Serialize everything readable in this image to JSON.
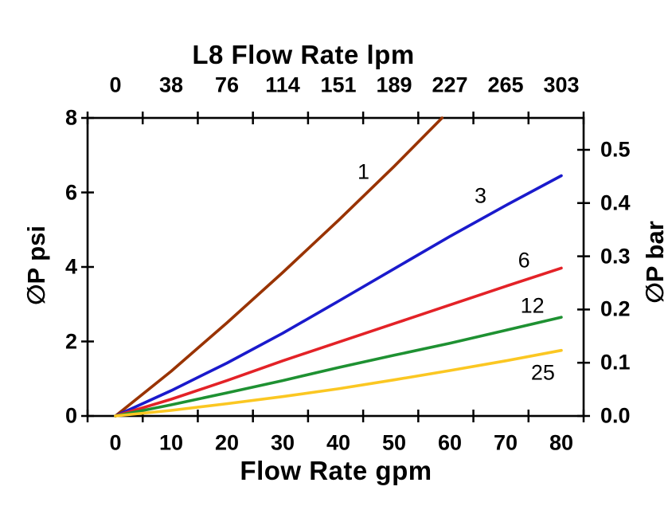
{
  "window": {
    "background": "#ffffff"
  },
  "chart_data": {
    "type": "line",
    "grid": false,
    "legend": "inline-labels-on-lines",
    "axis_color": "#000000",
    "text_color": "#000000",
    "top_axis": {
      "title": "L8 Flow Rate lpm",
      "tick_labels": [
        "0",
        "38",
        "76",
        "114",
        "151",
        "189",
        "227",
        "265",
        "303"
      ],
      "tick_values_gpm": [
        0,
        10,
        20,
        30,
        40,
        50,
        60,
        70,
        80
      ]
    },
    "x_axis": {
      "title": "Flow Rate gpm",
      "tick_labels": [
        "0",
        "10",
        "20",
        "30",
        "40",
        "50",
        "60",
        "70",
        "80"
      ],
      "tick_values_gpm": [
        0,
        10,
        20,
        30,
        40,
        50,
        60,
        70,
        80
      ],
      "range_gpm": [
        -5,
        85
      ]
    },
    "y_axis_left": {
      "title": "∅P psi",
      "tick_labels": [
        "8",
        "6",
        "4",
        "2",
        "0"
      ],
      "tick_values_psi": [
        8,
        6,
        4,
        2,
        0
      ],
      "range_psi": [
        0,
        8
      ]
    },
    "y_axis_right": {
      "title": "∅P bar",
      "tick_labels": [
        "0.5",
        "0.4",
        "0.3",
        "0.2",
        "0.1",
        "0.0"
      ],
      "tick_values_bar": [
        0.5,
        0.4,
        0.3,
        0.2,
        0.1,
        0.0
      ],
      "range_bar": [
        0,
        0.56
      ]
    },
    "series": [
      {
        "label": "1",
        "micron_rating": 1,
        "color": "#993300",
        "points": [
          [
            0,
            0
          ],
          [
            10,
            1.2
          ],
          [
            20,
            2.5
          ],
          [
            30,
            3.85
          ],
          [
            40,
            5.25
          ],
          [
            50,
            6.7
          ],
          [
            58.6,
            8.0
          ]
        ],
        "label_pos": [
          44.5,
          6.55
        ]
      },
      {
        "label": "3",
        "micron_rating": 3,
        "color": "#1A1ACC",
        "points": [
          [
            0,
            0
          ],
          [
            10,
            0.68
          ],
          [
            20,
            1.42
          ],
          [
            30,
            2.22
          ],
          [
            40,
            3.08
          ],
          [
            50,
            3.95
          ],
          [
            60,
            4.82
          ],
          [
            70,
            5.65
          ],
          [
            80,
            6.45
          ]
        ],
        "label_pos": [
          65.5,
          5.9
        ]
      },
      {
        "label": "6",
        "micron_rating": 6,
        "color": "#E32227",
        "points": [
          [
            0,
            0
          ],
          [
            10,
            0.45
          ],
          [
            20,
            0.95
          ],
          [
            30,
            1.48
          ],
          [
            40,
            1.98
          ],
          [
            50,
            2.48
          ],
          [
            60,
            2.98
          ],
          [
            70,
            3.48
          ],
          [
            80,
            3.97
          ]
        ],
        "label_pos": [
          73.3,
          4.18
        ]
      },
      {
        "label": "12",
        "micron_rating": 12,
        "color": "#1E9132",
        "points": [
          [
            0,
            0
          ],
          [
            10,
            0.3
          ],
          [
            20,
            0.62
          ],
          [
            30,
            0.95
          ],
          [
            40,
            1.3
          ],
          [
            50,
            1.63
          ],
          [
            60,
            1.95
          ],
          [
            70,
            2.3
          ],
          [
            80,
            2.65
          ]
        ],
        "label_pos": [
          74.8,
          2.95
        ]
      },
      {
        "label": "25",
        "micron_rating": 25,
        "color": "#FBC722",
        "points": [
          [
            0,
            0
          ],
          [
            10,
            0.15
          ],
          [
            20,
            0.33
          ],
          [
            30,
            0.52
          ],
          [
            40,
            0.73
          ],
          [
            50,
            0.97
          ],
          [
            60,
            1.22
          ],
          [
            70,
            1.48
          ],
          [
            80,
            1.76
          ]
        ],
        "label_pos": [
          76.7,
          1.16
        ]
      }
    ]
  }
}
